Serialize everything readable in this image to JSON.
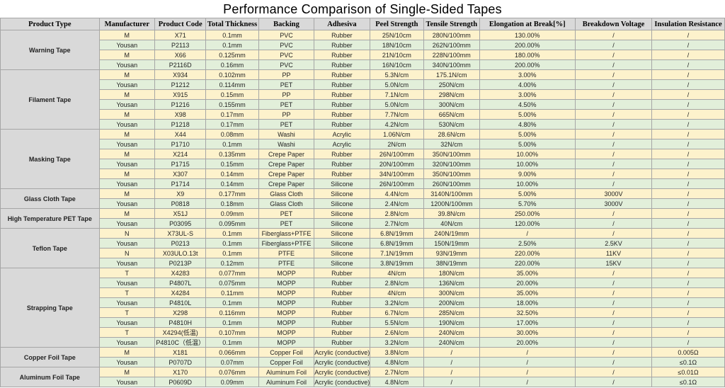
{
  "title": "Performance Comparison of Single-Sided Tapes",
  "headers": [
    "Product Type",
    "Manufacturer",
    "Product Code",
    "Total Thickness",
    "Backing",
    "Adhesiva",
    "Peel Strength",
    "Tensile Strength",
    "Elongation at Break[%]",
    "Breakdown Voltage",
    "Insulation Resistance"
  ],
  "colors": {
    "header_bg": "#d9d9d9",
    "row_a": "#fdf2cc",
    "row_b": "#e2efda",
    "border": "#a6a6a6"
  },
  "groups": [
    {
      "type": "Warning Tape",
      "rows": [
        [
          "M",
          "X71",
          "0.1mm",
          "PVC",
          "Rubber",
          "25N/10cm",
          "280N/100mm",
          "130.00%",
          "/",
          "/"
        ],
        [
          "Yousan",
          "P2113",
          "0.1mm",
          "PVC",
          "Rubber",
          "18N/10cm",
          "262N/100mm",
          "200.00%",
          "/",
          "/"
        ],
        [
          "M",
          "X66",
          "0.125mm",
          "PVC",
          "Rubber",
          "21N/10cm",
          "228N/100mm",
          "180.00%",
          "/",
          "/"
        ],
        [
          "Yousan",
          "P2116D",
          "0.16mm",
          "PVC",
          "Rubber",
          "16N/10cm",
          "340N/100mm",
          "200.00%",
          "/",
          "/"
        ]
      ]
    },
    {
      "type": "Filament Tape",
      "rows": [
        [
          "M",
          "X934",
          "0.102mm",
          "PP",
          "Rubber",
          "5.3N/cm",
          "175.1N/cm",
          "3.00%",
          "/",
          "/"
        ],
        [
          "Yousan",
          "P1212",
          "0.114mm",
          "PET",
          "Rubber",
          "5.0N/cm",
          "250N/cm",
          "4.00%",
          "/",
          "/"
        ],
        [
          "M",
          "X915",
          "0.15mm",
          "PP",
          "Rubber",
          "7.1N/cm",
          "298N/cm",
          "3.00%",
          "/",
          "/"
        ],
        [
          "Yousan",
          "P1216",
          "0.155mm",
          "PET",
          "Rubber",
          "5.0N/cm",
          "300N/cm",
          "4.50%",
          "/",
          "/"
        ],
        [
          "M",
          "X98",
          "0.17mm",
          "PP",
          "Rubber",
          "7.7N/cm",
          "665N/cm",
          "5.00%",
          "/",
          "/"
        ],
        [
          "Yousan",
          "P1218",
          "0.17mm",
          "PET",
          "Rubber",
          "4.2N/cm",
          "530N/cm",
          "4.80%",
          "/",
          "/"
        ]
      ]
    },
    {
      "type": "Masking Tape",
      "rows": [
        [
          "M",
          "X44",
          "0.08mm",
          "Washi",
          "Acrylic",
          "1.06N/cm",
          "28.6N/cm",
          "5.00%",
          "/",
          "/"
        ],
        [
          "Yousan",
          "P1710",
          "0.1mm",
          "Washi",
          "Acrylic",
          "2N/cm",
          "32N/cm",
          "5.00%",
          "/",
          "/"
        ],
        [
          "M",
          "X214",
          "0.135mm",
          "Crepe Paper",
          "Rubber",
          "26N/100mm",
          "350N/100mm",
          "10.00%",
          "/",
          "/"
        ],
        [
          "Yousan",
          "P1715",
          "0.15mm",
          "Crepe Paper",
          "Rubber",
          "20N/100mm",
          "320N/100mm",
          "10.00%",
          "/",
          "/"
        ],
        [
          "M",
          "X307",
          "0.14mm",
          "Crepe Paper",
          "Rubber",
          "34N/100mm",
          "350N/100mm",
          "9.00%",
          "/",
          "/"
        ],
        [
          "Yousan",
          "P1714",
          "0.14mm",
          "Crepe Paper",
          "Silicone",
          "26N/100mm",
          "260N/100mm",
          "10.00%",
          "/",
          "/"
        ]
      ]
    },
    {
      "type": "Glass Cloth Tape",
      "rows": [
        [
          "M",
          "X9",
          "0.177mm",
          "Glass Cloth",
          "Silicone",
          "4.4N/cm",
          "3140N/100mm",
          "5.00%",
          "3000V",
          "/"
        ],
        [
          "Yousan",
          "P0818",
          "0.18mm",
          "Glass Cloth",
          "Silicone",
          "2.4N/cm",
          "1200N/100mm",
          "5.70%",
          "3000V",
          "/"
        ]
      ]
    },
    {
      "type": "High Temperature PET Tape",
      "rows": [
        [
          "M",
          "X51J",
          "0.09mm",
          "PET",
          "Silicone",
          "2.8N/cm",
          "39.8N/cm",
          "250.00%",
          "/",
          "/"
        ],
        [
          "Yousan",
          "P03095",
          "0.095mm",
          "PET",
          "Silicone",
          "2.7N/cm",
          "40N/cm",
          "120.00%",
          "/",
          "/"
        ]
      ]
    },
    {
      "type": "Teflon Tape",
      "rows": [
        [
          "N",
          "X73UL-S",
          "0.1mm",
          "Fiberglass+PTFE",
          "Silicone",
          "6.8N/19mm",
          "240N/19mm",
          "/",
          "/",
          "/"
        ],
        [
          "Yousan",
          "P0213",
          "0.1mm",
          "Fiberglass+PTFE",
          "Silicone",
          "6.8N/19mm",
          "150N/19mm",
          "2.50%",
          "2.5KV",
          "/"
        ],
        [
          "N",
          "X03ULO.13t",
          "0.1mm",
          "PTFE",
          "Silicone",
          "7.1N/19mm",
          "93N/19mm",
          "220.00%",
          "11KV",
          "/"
        ],
        [
          "Yousan",
          "P0213P",
          "0.12mm",
          "PTFE",
          "Silicone",
          "3.8N/19mm",
          "38N/19mm",
          "220.00%",
          "15KV",
          "/"
        ]
      ]
    },
    {
      "type": "Strapping Tape",
      "rows": [
        [
          "T",
          "X4283",
          "0.077mm",
          "MOPP",
          "Rubber",
          "4N/cm",
          "180N/cm",
          "35.00%",
          "/",
          "/"
        ],
        [
          "Yousan",
          "P4807L",
          "0.075mm",
          "MOPP",
          "Rubber",
          "2.8N/cm",
          "136N/cm",
          "20.00%",
          "/",
          "/"
        ],
        [
          "T",
          "X4284",
          "0.11mm",
          "MOPP",
          "Rubber",
          "4N/cm",
          "300N/cm",
          "35.00%",
          "/",
          "/"
        ],
        [
          "Yousan",
          "P4810L",
          "0.1mm",
          "MOPP",
          "Rubber",
          "3.2N/cm",
          "200N/cm",
          "18.00%",
          "/",
          "/"
        ],
        [
          "T",
          "X298",
          "0.116mm",
          "MOPP",
          "Rubber",
          "6.7N/cm",
          "285N/cm",
          "32.50%",
          "/",
          "/"
        ],
        [
          "Yousan",
          "P4810H",
          "0.1mm",
          "MOPP",
          "Rubber",
          "5.5N/cm",
          "190N/cm",
          "17.00%",
          "/",
          "/"
        ],
        [
          "T",
          "X4294(低温)",
          "0.107mm",
          "MOPP",
          "Rubber",
          "2.6N/cm",
          "240N/cm",
          "30.00%",
          "/",
          "/"
        ],
        [
          "Yousan",
          "P4810C（低温）",
          "0.1mm",
          "MOPP",
          "Rubber",
          "3.2N/cm",
          "240N/cm",
          "20.00%",
          "/",
          "/"
        ]
      ]
    },
    {
      "type": "Copper Foil Tape",
      "rows": [
        [
          "M",
          "X181",
          "0.066mm",
          "Copper Foil",
          "Acrylic (conductive)",
          "3.8N/cm",
          "/",
          "/",
          "/",
          "0.005Ω"
        ],
        [
          "Yousan",
          "P0707D",
          "0.07mm",
          "Copper Foil",
          "Acrylic (conductive)",
          "4.8N/cm",
          "/",
          "/",
          "/",
          "≤0.1Ω"
        ]
      ]
    },
    {
      "type": "Aluminum Foil Tape",
      "rows": [
        [
          "M",
          "X170",
          "0.076mm",
          "Aluminum Foil",
          "Acrylic (conductive)",
          "2.7N/cm",
          "/",
          "/",
          "/",
          "≤0.01Ω"
        ],
        [
          "Yousan",
          "P0609D",
          "0.09mm",
          "Aluminum Foil",
          "Acrylic (conductive)",
          "4.8N/cm",
          "/",
          "/",
          "/",
          "≤0.1Ω"
        ]
      ]
    }
  ]
}
